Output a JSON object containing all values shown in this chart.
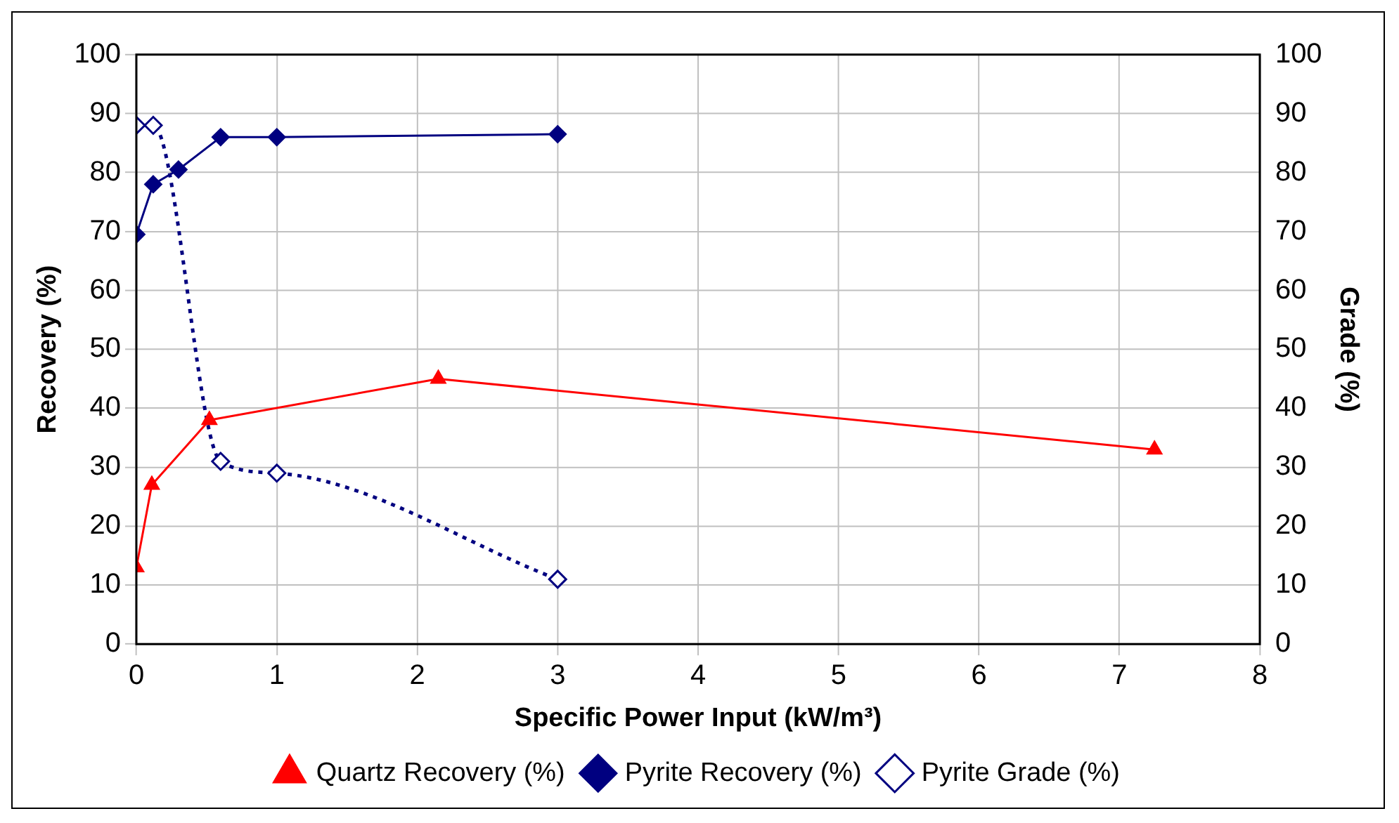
{
  "chart_data": {
    "type": "line",
    "xlabel": "Specific Power Input (kW/m³)",
    "ylabel": "Recovery (%)",
    "y2label": "Grade (%)",
    "xlim": [
      0,
      8
    ],
    "xticks": [
      0,
      1,
      2,
      3,
      4,
      5,
      6,
      7,
      8
    ],
    "ylim": [
      0,
      100
    ],
    "yticks": [
      0,
      10,
      20,
      30,
      40,
      50,
      60,
      70,
      80,
      90,
      100
    ],
    "y2lim": [
      0,
      100
    ],
    "y2ticks": [
      0,
      10,
      20,
      30,
      40,
      50,
      60,
      70,
      80,
      90,
      100
    ],
    "grid": true,
    "legend": "bottom",
    "series": [
      {
        "name": "Quartz Recovery (%)",
        "color": "#ff0000",
        "x": [
          0,
          0.11,
          0.52,
          2.15,
          7.25
        ],
        "values": [
          13,
          27,
          38,
          45,
          33
        ],
        "marker": "triangle",
        "line_style": "solid"
      },
      {
        "name": "Pyrite Recovery (%)",
        "color": "#000080",
        "x": [
          0,
          0.12,
          0.3,
          0.6,
          1,
          3
        ],
        "values": [
          69.5,
          78,
          80.5,
          86,
          86,
          86.5
        ],
        "marker": "diamond",
        "line_style": "solid"
      },
      {
        "name": "Pyrite Grade (%)",
        "color": "#000080",
        "x": [
          0,
          0.12,
          0.6,
          1,
          3
        ],
        "values": [
          88,
          88,
          31,
          29,
          11
        ],
        "marker": "diamond",
        "line_style": "dotted",
        "axis": "y2"
      }
    ]
  }
}
